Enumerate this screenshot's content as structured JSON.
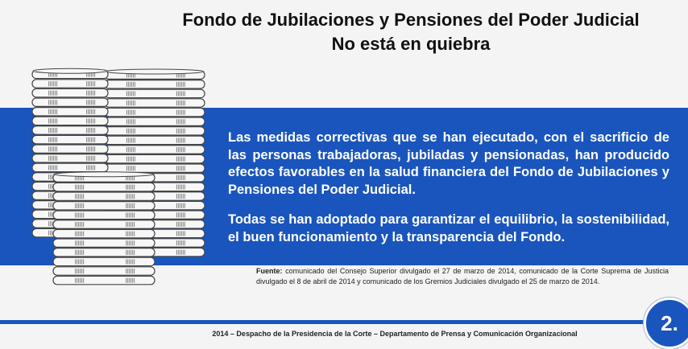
{
  "header": {
    "title_line1": "Fondo de Jubilaciones y Pensiones del Poder Judicial",
    "title_line2": "No está en quiebra"
  },
  "body": {
    "paragraph1": "Las medidas correctivas que se han ejecutado, con el sacrificio de las personas trabajadoras, jubiladas y pensionadas, han producido efectos favorables en la salud financiera del Fondo  de Jubilaciones y Pensiones del Poder Judicial.",
    "paragraph2": "Todas se han adoptado para garantizar el equilibrio, la sostenibilidad, el buen funcionamiento y la transparencia del Fondo."
  },
  "source": {
    "label": "Fuente:",
    "text": "comunicado del Consejo Superior divulgado el 27 de marzo de 2014, comunicado de la Corte Suprema de Justicia divulgado el 8 de abril de 2014 y comunicado de los Gremios Judiciales divulgado el 25 de marzo de 2014."
  },
  "slide_number": "2.",
  "footer": "2014 – Despacho de la Presidencia de la Corte – Departamento de Prensa y Comunicación Organizacional",
  "colors": {
    "band": "#1a55bd",
    "coin_face": "#f7f7f7",
    "coin_edge": "#444444"
  },
  "illustration": {
    "icon": "coin-stacks-icon",
    "stacks": [
      {
        "coin_count": 20
      },
      {
        "coin_count": 18
      },
      {
        "coin_count": 12
      }
    ]
  }
}
